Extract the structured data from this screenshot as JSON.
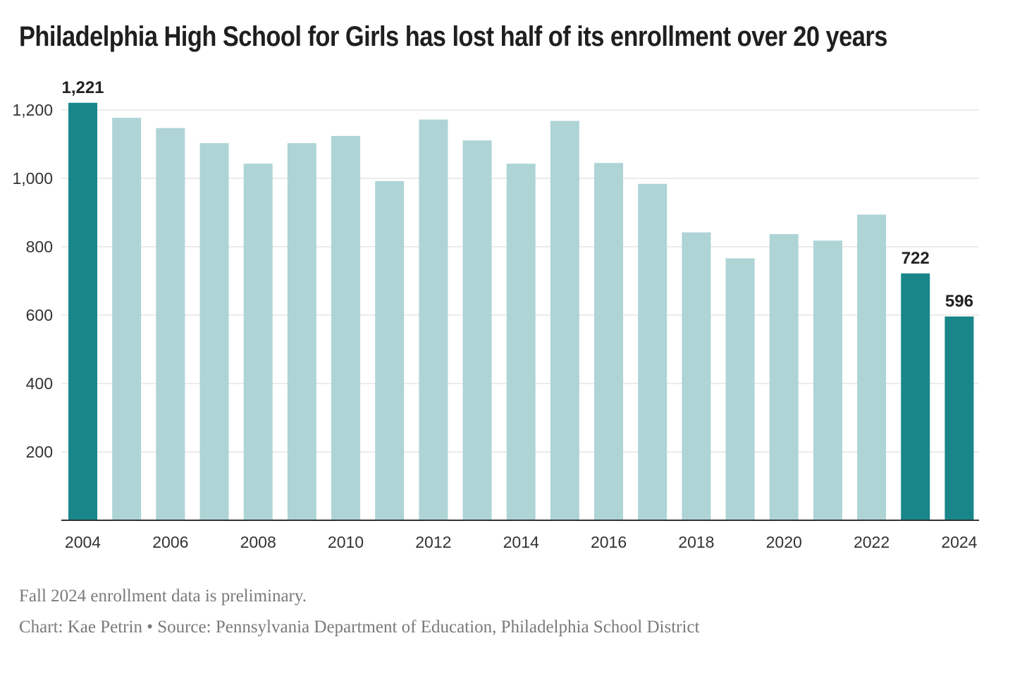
{
  "title": "Philadelphia High School for Girls has lost half of its enrollment over 20 years",
  "notes": {
    "preliminary": "Fall 2024 enrollment data is preliminary.",
    "credit": "Chart: Kae Petrin • Source: Pennsylvania Department of Education, Philadelphia School District"
  },
  "colors": {
    "highlight": "#19868a",
    "base": "#aed4d6",
    "grid": "#e6e6e6",
    "axis": "#333333"
  },
  "chart_data": {
    "type": "bar",
    "title": "Philadelphia High School for Girls has lost half of its enrollment over 20 years",
    "xlabel": "",
    "ylabel": "",
    "categories": [
      "2004",
      "2005",
      "2006",
      "2007",
      "2008",
      "2009",
      "2010",
      "2011",
      "2012",
      "2013",
      "2014",
      "2015",
      "2016",
      "2017",
      "2018",
      "2019",
      "2020",
      "2021",
      "2022",
      "2023",
      "2024"
    ],
    "values": [
      1221,
      1177,
      1147,
      1103,
      1043,
      1103,
      1124,
      992,
      1172,
      1111,
      1043,
      1168,
      1045,
      984,
      842,
      766,
      837,
      818,
      894,
      722,
      596
    ],
    "highlighted": [
      "2004",
      "2023",
      "2024"
    ],
    "data_labels": [
      {
        "category": "2004",
        "text": "1,221"
      },
      {
        "category": "2023",
        "text": "722"
      },
      {
        "category": "2024",
        "text": "596"
      }
    ],
    "x_tick_labels": [
      "2004",
      "2006",
      "2008",
      "2010",
      "2012",
      "2014",
      "2016",
      "2018",
      "2020",
      "2022",
      "2024"
    ],
    "y_tick_values": [
      200,
      400,
      600,
      800,
      1000,
      1200
    ],
    "y_tick_labels": [
      "200",
      "400",
      "600",
      "800",
      "1,000",
      "1,200"
    ],
    "ylim": [
      0,
      1200
    ],
    "grid": true,
    "legend": "none"
  }
}
